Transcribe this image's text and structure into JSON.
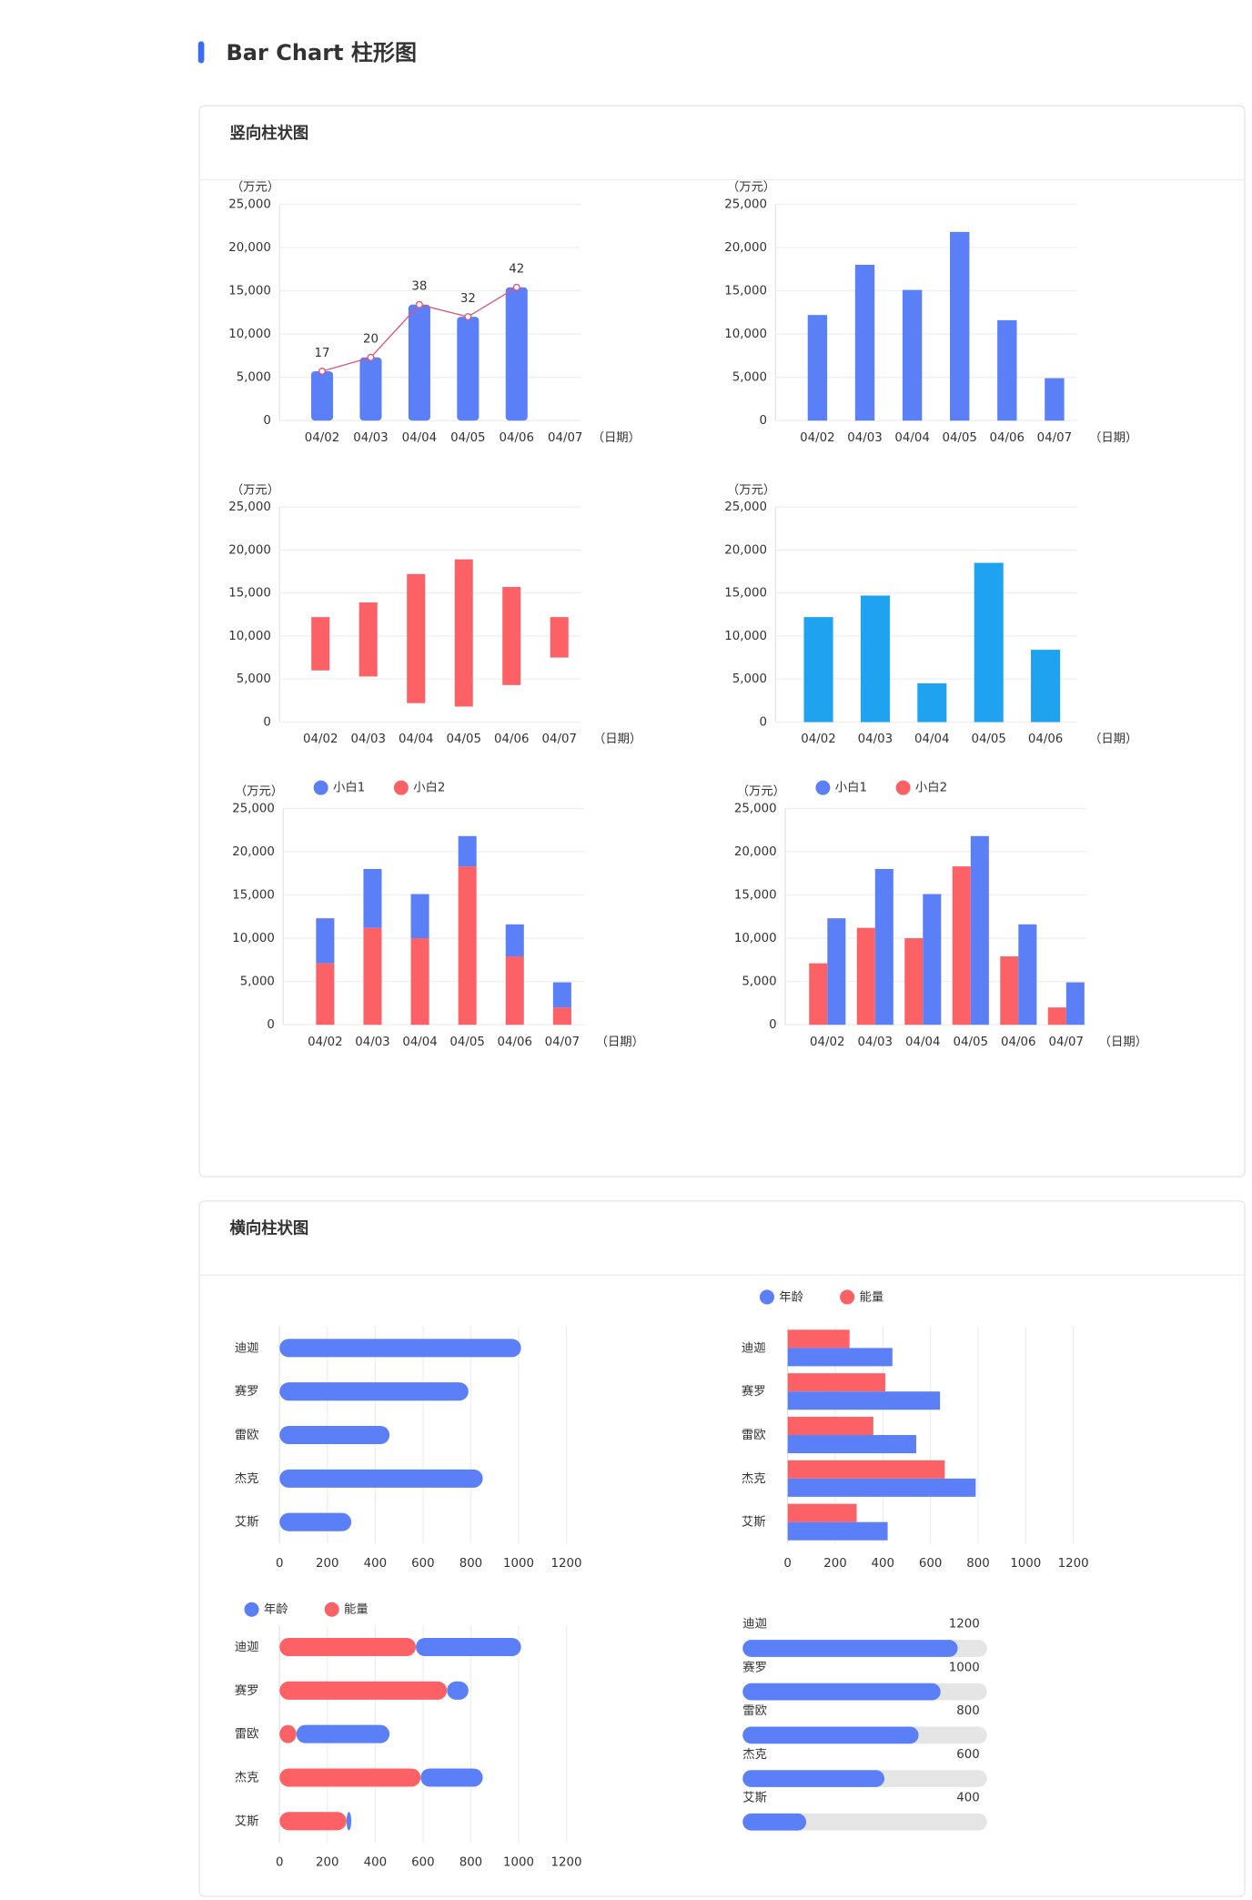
{
  "header": {
    "title": "Bar Chart 柱形图"
  },
  "sections": [
    {
      "title": "竖向柱状图",
      "charts": [
        {
          "type": "bar-line",
          "y_unit": "（万元）",
          "x_unit": "（日期）",
          "categories": [
            "04/02",
            "04/03",
            "04/04",
            "04/05",
            "04/06",
            "04/07"
          ],
          "series": [
            {
              "type": "bar",
              "color": "#5b7ff7",
              "values": [
                5700,
                7300,
                13400,
                12000,
                15400,
                null
              ]
            },
            {
              "type": "line",
              "color": "#d9577a",
              "values": [
                5700,
                7300,
                13400,
                12000,
                15400,
                null
              ],
              "point_labels": [
                17,
                20,
                38,
                32,
                42,
                null
              ]
            }
          ],
          "ylim": [
            0,
            25000
          ],
          "yticks": [
            0,
            {
              "value": 5000,
              "label": "5,000"
            },
            {
              "value": 10000,
              "label": "10,000"
            },
            {
              "value": 15000,
              "label": "15,000"
            },
            {
              "value": 20000,
              "label": "20,000"
            },
            {
              "value": 25000,
              "label": "25,000"
            }
          ],
          "grid": true
        },
        {
          "type": "bar",
          "y_unit": "（万元）",
          "x_unit": "（日期）",
          "categories": [
            "04/02",
            "04/03",
            "04/04",
            "04/05",
            "04/06",
            "04/07"
          ],
          "series": [
            {
              "color": "#5b7ff7",
              "values": [
                12200,
                18000,
                15100,
                21800,
                11600,
                4900
              ]
            }
          ],
          "ylim": [
            0,
            25000
          ],
          "yticks": [
            0,
            {
              "value": 5000,
              "label": "5,000"
            },
            {
              "value": 10000,
              "label": "10,000"
            },
            {
              "value": 15000,
              "label": "15,000"
            },
            {
              "value": 20000,
              "label": "20,000"
            },
            {
              "value": 25000,
              "label": "25,000"
            }
          ],
          "grid": true
        },
        {
          "type": "range-bar",
          "y_unit": "（万元）",
          "x_unit": "（日期）",
          "categories": [
            "04/02",
            "04/03",
            "04/04",
            "04/05",
            "04/06",
            "04/07"
          ],
          "series": [
            {
              "color": "#fc6165",
              "low": [
                6000,
                5300,
                2200,
                1800,
                4300,
                7500
              ],
              "high": [
                12200,
                13900,
                17200,
                18900,
                15700,
                12200
              ]
            }
          ],
          "ylim": [
            0,
            25000
          ],
          "yticks": [
            0,
            {
              "value": 5000,
              "label": "5,000"
            },
            {
              "value": 10000,
              "label": "10,000"
            },
            {
              "value": 15000,
              "label": "15,000"
            },
            {
              "value": 20000,
              "label": "20,000"
            },
            {
              "value": 25000,
              "label": "25,000"
            }
          ],
          "grid": true
        },
        {
          "type": "bar",
          "y_unit": "（万元）",
          "x_unit": "（日期）",
          "categories": [
            "04/02",
            "04/03",
            "04/04",
            "04/05",
            "04/06"
          ],
          "series": [
            {
              "color": "#1fa2ef",
              "values": [
                12200,
                14700,
                4500,
                18500,
                8400
              ]
            }
          ],
          "ylim": [
            0,
            25000
          ],
          "yticks": [
            0,
            {
              "value": 5000,
              "label": "5,000"
            },
            {
              "value": 10000,
              "label": "10,000"
            },
            {
              "value": 15000,
              "label": "15,000"
            },
            {
              "value": 20000,
              "label": "20,000"
            },
            {
              "value": 25000,
              "label": "25,000"
            }
          ],
          "grid": true
        },
        {
          "type": "stacked-bar",
          "y_unit": "（万元）",
          "x_unit": "（日期）",
          "categories": [
            "04/02",
            "04/03",
            "04/04",
            "04/05",
            "04/06",
            "04/07"
          ],
          "series": [
            {
              "name": "小白1",
              "color": "#5b7ff7",
              "values": [
                5200,
                6800,
                5100,
                3500,
                3700,
                2900
              ]
            },
            {
              "name": "小白2",
              "color": "#fc6165",
              "values": [
                7100,
                11200,
                10000,
                18300,
                7900,
                2000
              ]
            }
          ],
          "ylim": [
            0,
            25000
          ],
          "yticks": [
            0,
            {
              "value": 5000,
              "label": "5,000"
            },
            {
              "value": 10000,
              "label": "10,000"
            },
            {
              "value": 15000,
              "label": "15,000"
            },
            {
              "value": 20000,
              "label": "20,000"
            },
            {
              "value": 25000,
              "label": "25,000"
            }
          ],
          "grid": true
        },
        {
          "type": "grouped-bar",
          "y_unit": "（万元）",
          "x_unit": "（日期）",
          "categories": [
            "04/02",
            "04/03",
            "04/04",
            "04/05",
            "04/06",
            "04/07"
          ],
          "series": [
            {
              "name": "小白1",
              "color": "#5b7ff7",
              "values": [
                12300,
                18000,
                15100,
                21800,
                11600,
                4900
              ]
            },
            {
              "name": "小白2",
              "color": "#fc6165",
              "values": [
                7100,
                11200,
                10000,
                18300,
                7900,
                2000
              ]
            }
          ],
          "ylim": [
            0,
            25000
          ],
          "yticks": [
            0,
            {
              "value": 5000,
              "label": "5,000"
            },
            {
              "value": 10000,
              "label": "10,000"
            },
            {
              "value": 15000,
              "label": "15,000"
            },
            {
              "value": 20000,
              "label": "20,000"
            },
            {
              "value": 25000,
              "label": "25,000"
            }
          ],
          "grid": true
        }
      ]
    },
    {
      "title": "横向柱状图",
      "charts": [
        {
          "type": "hbar",
          "categories": [
            "迪迦",
            "赛罗",
            "雷欧",
            "杰克",
            "艾斯"
          ],
          "series": [
            {
              "color": "#5b7ff7",
              "values": [
                1010,
                790,
                460,
                850,
                300
              ]
            }
          ],
          "xlim": [
            0,
            1200
          ],
          "xticks": [
            0,
            200,
            400,
            600,
            800,
            1000,
            1200
          ],
          "grid": true
        },
        {
          "type": "grouped-hbar",
          "categories": [
            "迪迦",
            "赛罗",
            "雷欧",
            "杰克",
            "艾斯"
          ],
          "series": [
            {
              "name": "年龄",
              "color": "#5b7ff7",
              "values": [
                440,
                640,
                540,
                790,
                420
              ]
            },
            {
              "name": "能量",
              "color": "#fc6165",
              "values": [
                260,
                410,
                360,
                660,
                290
              ]
            }
          ],
          "xlim": [
            0,
            1200
          ],
          "xticks": [
            0,
            200,
            400,
            600,
            800,
            1000,
            1200
          ],
          "grid": true
        },
        {
          "type": "stacked-hbar",
          "categories": [
            "迪迦",
            "赛罗",
            "雷欧",
            "杰克",
            "艾斯"
          ],
          "series": [
            {
              "name": "年龄",
              "color": "#5b7ff7",
              "values": [
                440,
                90,
                390,
                260,
                20
              ]
            },
            {
              "name": "能量",
              "color": "#fc6165",
              "values": [
                570,
                700,
                70,
                590,
                280
              ]
            }
          ],
          "xlim": [
            0,
            1200
          ],
          "xticks": [
            0,
            200,
            400,
            600,
            800,
            1000,
            1200
          ],
          "grid": true
        },
        {
          "type": "progress",
          "categories": [
            "迪迦",
            "赛罗",
            "雷欧",
            "杰克",
            "艾斯"
          ],
          "values": [
            1200,
            1000,
            800,
            600,
            400
          ],
          "percent": [
            88,
            81,
            72,
            58,
            26
          ],
          "xlim": [
            0,
            100
          ],
          "color": "#5b7ff7",
          "track_color": "#e5e5e5"
        }
      ]
    }
  ]
}
